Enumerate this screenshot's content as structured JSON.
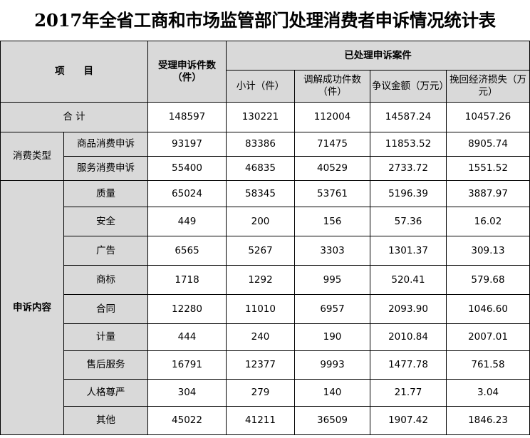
{
  "title": "2017年全省工商和市场监管部门处理消费者申诉情况统计表",
  "header": {
    "item": "项　　目",
    "accepted": "受理申诉件数（件）",
    "processed_group": "已处理申诉案件",
    "subtotal": "小计（件）",
    "mediated": "调解成功件数（件）",
    "disputed_amount": "争议金额（万元）",
    "recovered_loss": "挽回经济损失（万元）"
  },
  "total": {
    "label": "合 计",
    "values": [
      "148597",
      "130221",
      "112004",
      "14587.24",
      "10457.26"
    ]
  },
  "groups": [
    {
      "label": "消费类型",
      "rows": [
        {
          "label": "商品消费申诉",
          "values": [
            "93197",
            "83386",
            "71475",
            "11853.52",
            "8905.74"
          ]
        },
        {
          "label": "服务消费申诉",
          "values": [
            "55400",
            "46835",
            "40529",
            "2733.72",
            "1551.52"
          ]
        }
      ]
    },
    {
      "label": "申诉内容",
      "rows": [
        {
          "label": "质量",
          "values": [
            "65024",
            "58345",
            "53761",
            "5196.39",
            "3887.97"
          ]
        },
        {
          "label": "安全",
          "values": [
            "449",
            "200",
            "156",
            "57.36",
            "16.02"
          ]
        },
        {
          "label": "广告",
          "values": [
            "6565",
            "5267",
            "3303",
            "1301.37",
            "309.13"
          ]
        },
        {
          "label": "商标",
          "values": [
            "1718",
            "1292",
            "995",
            "520.41",
            "579.68"
          ]
        },
        {
          "label": "合同",
          "values": [
            "12280",
            "11010",
            "6957",
            "2093.90",
            "1046.60"
          ]
        },
        {
          "label": "计量",
          "values": [
            "444",
            "240",
            "190",
            "2010.84",
            "2007.01"
          ]
        },
        {
          "label": "售后服务",
          "values": [
            "16791",
            "12377",
            "9993",
            "1477.78",
            "761.58"
          ]
        },
        {
          "label": "人格尊严",
          "values": [
            "304",
            "279",
            "140",
            "21.77",
            "3.04"
          ]
        },
        {
          "label": "其他",
          "values": [
            "45022",
            "41211",
            "36509",
            "1907.42",
            "1846.23"
          ]
        }
      ]
    }
  ]
}
